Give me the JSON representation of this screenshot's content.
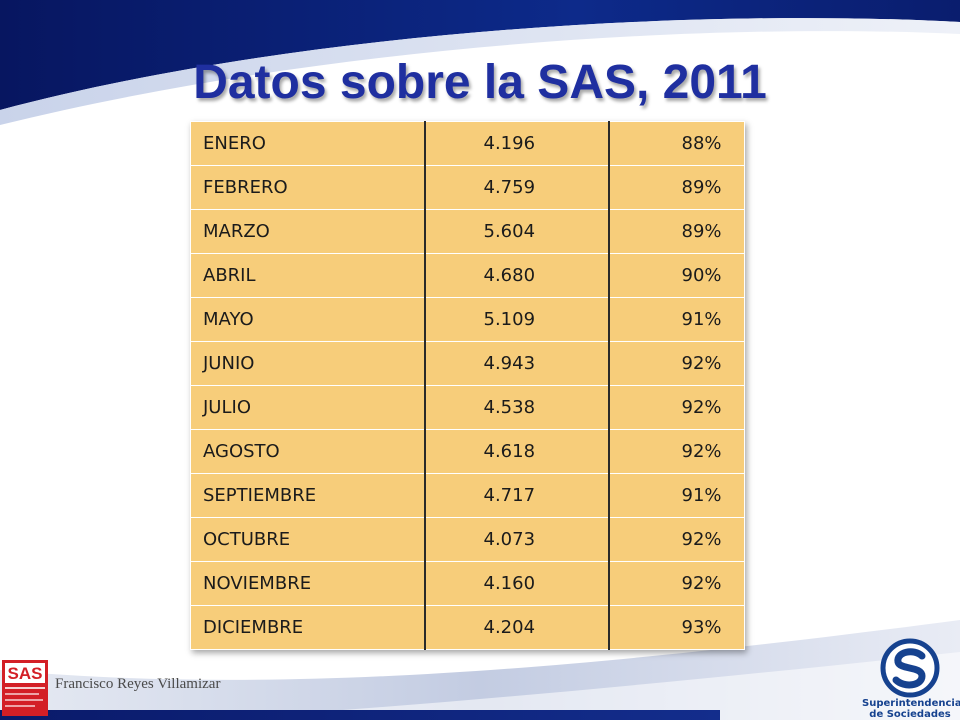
{
  "slide": {
    "title": "Datos sobre la SAS, 2011",
    "footer_author": "Francisco Reyes Villamizar"
  },
  "table": {
    "rows": [
      {
        "month": "ENERO",
        "value": "4.196",
        "percent": "88%"
      },
      {
        "month": "FEBRERO",
        "value": "4.759",
        "percent": "89%"
      },
      {
        "month": "MARZO",
        "value": "5.604",
        "percent": "89%"
      },
      {
        "month": "ABRIL",
        "value": "4.680",
        "percent": "90%"
      },
      {
        "month": "MAYO",
        "value": "5.109",
        "percent": "91%"
      },
      {
        "month": "JUNIO",
        "value": "4.943",
        "percent": "92%"
      },
      {
        "month": "JULIO",
        "value": "4.538",
        "percent": "92%"
      },
      {
        "month": "AGOSTO",
        "value": "4.618",
        "percent": "92%"
      },
      {
        "month": "SEPTIEMBRE",
        "value": "4.717",
        "percent": "91%"
      },
      {
        "month": "OCTUBRE",
        "value": "4.073",
        "percent": "92%"
      },
      {
        "month": "NOVIEMBRE",
        "value": "4.160",
        "percent": "92%"
      },
      {
        "month": "DICIEMBRE",
        "value": "4.204",
        "percent": "93%"
      }
    ]
  },
  "logos": {
    "sas_logo_text": "SAS",
    "super_logo_line1": "Superintendencia",
    "super_logo_line2": "de Sociedades"
  },
  "colors": {
    "title": "#1f2fa0",
    "table_fill": "#f7cd7a",
    "accent_navy": "#0d1f6e",
    "logo_blue": "#16428f",
    "sas_red": "#d31f26"
  }
}
